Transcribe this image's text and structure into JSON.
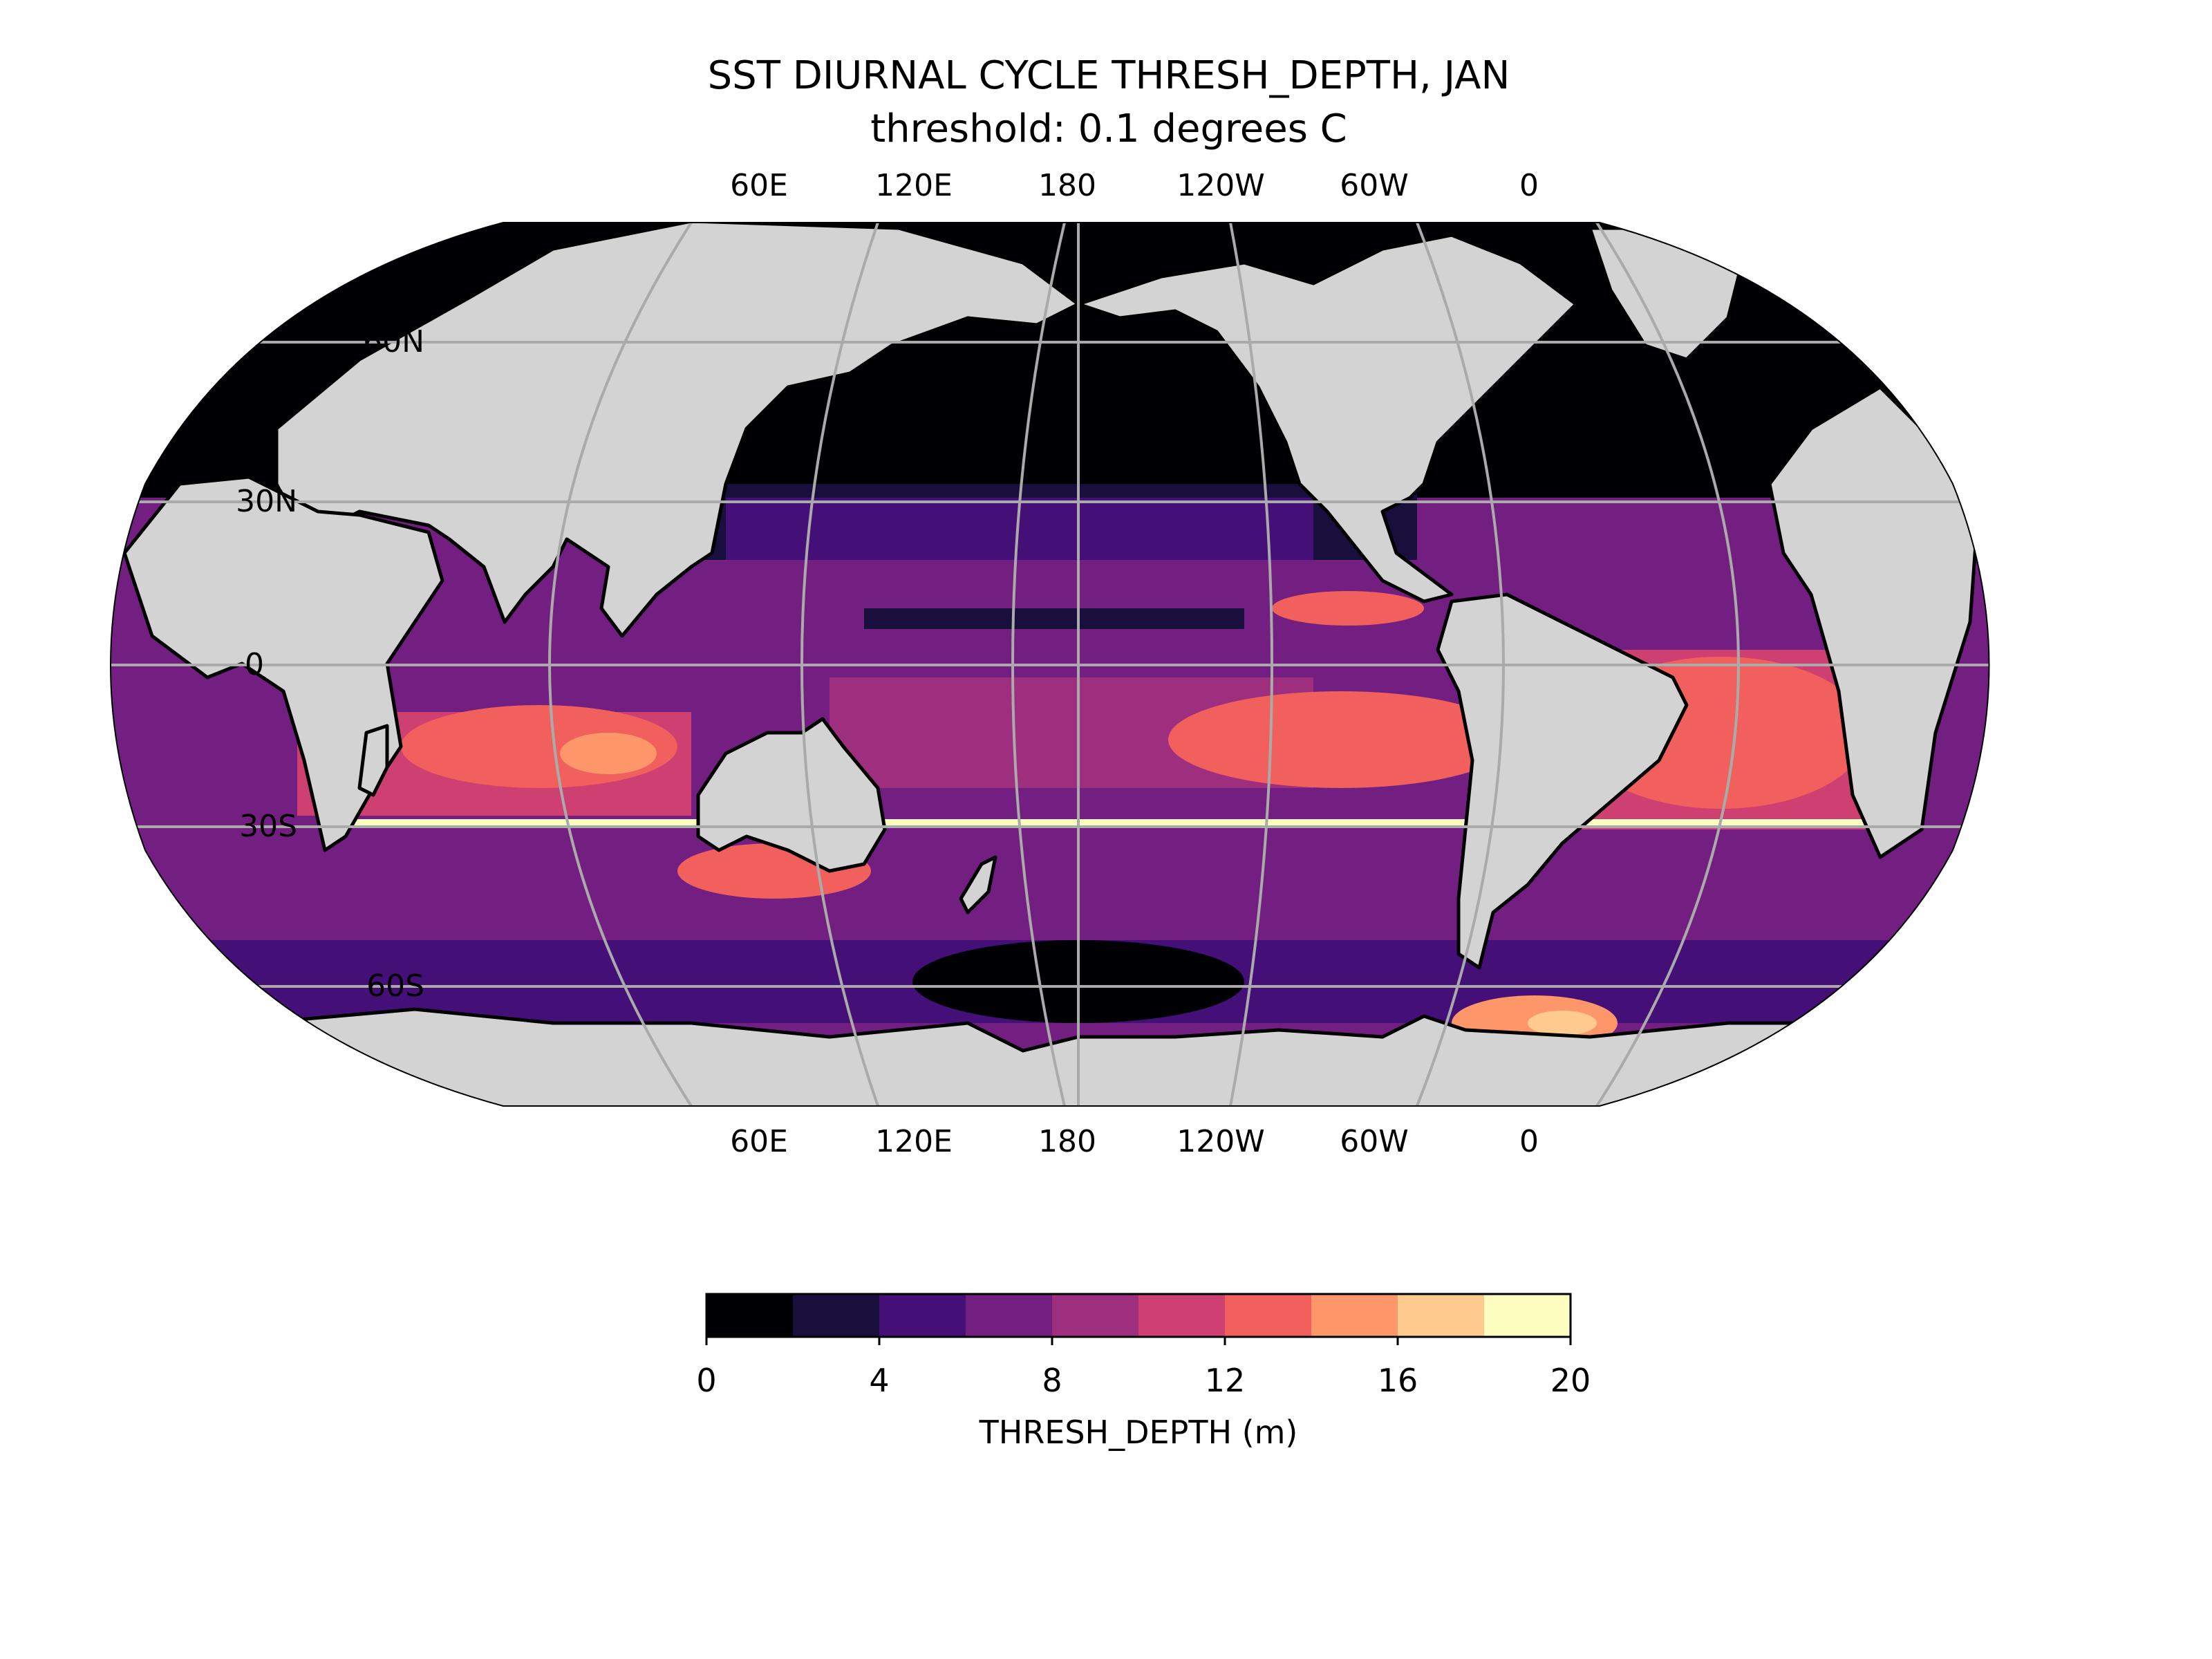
{
  "title": "SST DIURNAL CYCLE THRESH_DEPTH, JAN",
  "subtitle": "threshold: 0.1 degrees C",
  "map": {
    "projection": "robinson",
    "central_longitude": 180,
    "land_color": "#d3d3d3",
    "coastline_color": "#000000",
    "gridline_color": "#aaaaaa",
    "lon_tick_labels": [
      "60E",
      "120E",
      "180",
      "120W",
      "60W",
      "0"
    ],
    "lon_tick_values": [
      60,
      120,
      180,
      240,
      300,
      360
    ],
    "lat_tick_labels": [
      "60N",
      "30N",
      "0",
      "30S",
      "60S"
    ],
    "lat_tick_values": [
      60,
      30,
      0,
      -30,
      -60
    ]
  },
  "colorbar": {
    "label": "THRESH_DEPTH (m)",
    "tick_labels": [
      "0",
      "4",
      "8",
      "12",
      "16",
      "20"
    ],
    "bounds": [
      0,
      2,
      4,
      6,
      8,
      10,
      12,
      14,
      16,
      18,
      20
    ],
    "colors": [
      "#000004",
      "#180f3d",
      "#440f76",
      "#721f81",
      "#9e2f7f",
      "#cd4071",
      "#f1605d",
      "#fd9668",
      "#feca8d",
      "#fcfdbf"
    ]
  }
}
